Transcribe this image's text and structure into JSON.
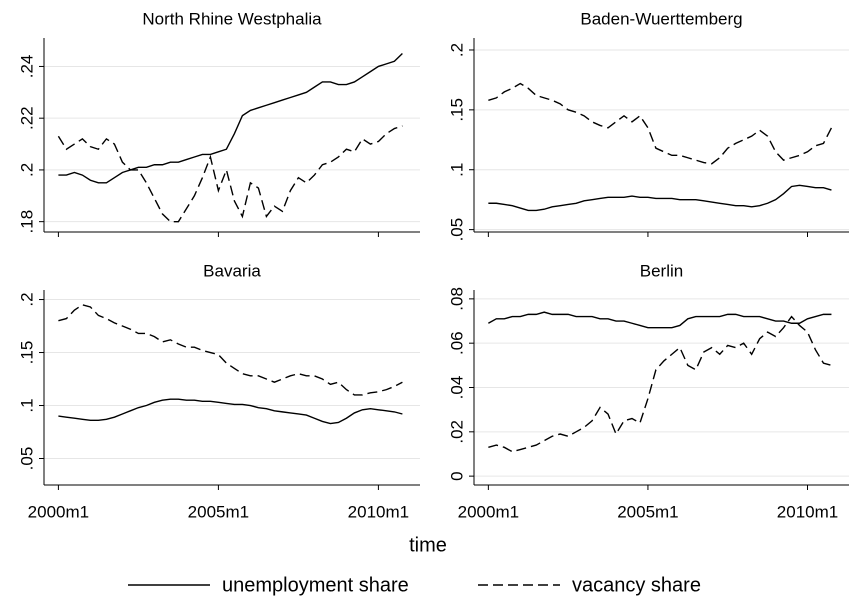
{
  "chart_data": [
    {
      "type": "line",
      "title": "North Rhine Westphalia",
      "x": [
        2000,
        2000.25,
        2000.5,
        2000.75,
        2001,
        2001.25,
        2001.5,
        2001.75,
        2002,
        2002.25,
        2002.5,
        2002.75,
        2003,
        2003.25,
        2003.5,
        2003.75,
        2004,
        2004.25,
        2004.5,
        2004.75,
        2005,
        2005.25,
        2005.5,
        2005.75,
        2006,
        2006.25,
        2006.5,
        2006.75,
        2007,
        2007.25,
        2007.5,
        2007.75,
        2008,
        2008.25,
        2008.5,
        2008.75,
        2009,
        2009.25,
        2009.5,
        2009.75,
        2010,
        2010.25,
        2010.5,
        2010.75
      ],
      "xlim": [
        1999.55,
        2011.3
      ],
      "xticks": [
        {
          "value": 2000,
          "label": "2000m1"
        },
        {
          "value": 2005,
          "label": "2005m1"
        },
        {
          "value": 2010,
          "label": "2010m1"
        }
      ],
      "ylim": [
        0.176,
        0.251
      ],
      "yticks": [
        {
          "value": 0.18,
          "label": ".18"
        },
        {
          "value": 0.2,
          "label": ".2"
        },
        {
          "value": 0.22,
          "label": ".22"
        },
        {
          "value": 0.24,
          "label": ".24"
        }
      ],
      "series": [
        {
          "dash": "solid",
          "values": [
            0.198,
            0.198,
            0.199,
            0.198,
            0.196,
            0.195,
            0.195,
            0.197,
            0.199,
            0.2,
            0.201,
            0.201,
            0.202,
            0.202,
            0.203,
            0.203,
            0.204,
            0.205,
            0.206,
            0.206,
            0.207,
            0.208,
            0.214,
            0.221,
            0.223,
            0.224,
            0.225,
            0.226,
            0.227,
            0.228,
            0.229,
            0.23,
            0.232,
            0.234,
            0.234,
            0.233,
            0.233,
            0.234,
            0.236,
            0.238,
            0.24,
            0.241,
            0.242,
            0.245
          ]
        },
        {
          "dash": "dashed",
          "values": [
            0.213,
            0.208,
            0.21,
            0.212,
            0.209,
            0.208,
            0.212,
            0.21,
            0.203,
            0.2,
            0.2,
            0.195,
            0.189,
            0.183,
            0.18,
            0.18,
            0.185,
            0.19,
            0.197,
            0.205,
            0.192,
            0.2,
            0.188,
            0.182,
            0.195,
            0.193,
            0.182,
            0.186,
            0.184,
            0.192,
            0.197,
            0.195,
            0.198,
            0.202,
            0.203,
            0.205,
            0.208,
            0.207,
            0.212,
            0.21,
            0.211,
            0.214,
            0.216,
            0.217
          ]
        }
      ]
    },
    {
      "type": "line",
      "title": "Baden-Wuerttemberg",
      "x": [
        2000,
        2000.25,
        2000.5,
        2000.75,
        2001,
        2001.25,
        2001.5,
        2001.75,
        2002,
        2002.25,
        2002.5,
        2002.75,
        2003,
        2003.25,
        2003.5,
        2003.75,
        2004,
        2004.25,
        2004.5,
        2004.75,
        2005,
        2005.25,
        2005.5,
        2005.75,
        2006,
        2006.25,
        2006.5,
        2006.75,
        2007,
        2007.25,
        2007.5,
        2007.75,
        2008,
        2008.25,
        2008.5,
        2008.75,
        2009,
        2009.25,
        2009.5,
        2009.75,
        2010,
        2010.25,
        2010.5,
        2010.75
      ],
      "xlim": [
        1999.55,
        2011.3
      ],
      "xticks": [
        {
          "value": 2000,
          "label": "2000m1"
        },
        {
          "value": 2005,
          "label": "2005m1"
        },
        {
          "value": 2010,
          "label": "2010m1"
        }
      ],
      "ylim": [
        0.048,
        0.21
      ],
      "yticks": [
        {
          "value": 0.05,
          "label": ".05"
        },
        {
          "value": 0.1,
          "label": ".1"
        },
        {
          "value": 0.15,
          "label": ".15"
        },
        {
          "value": 0.2,
          "label": ".2"
        }
      ],
      "series": [
        {
          "dash": "solid",
          "values": [
            0.072,
            0.072,
            0.071,
            0.07,
            0.068,
            0.066,
            0.066,
            0.067,
            0.069,
            0.07,
            0.071,
            0.072,
            0.074,
            0.075,
            0.076,
            0.077,
            0.077,
            0.077,
            0.078,
            0.077,
            0.077,
            0.076,
            0.076,
            0.076,
            0.075,
            0.075,
            0.075,
            0.074,
            0.073,
            0.072,
            0.071,
            0.07,
            0.07,
            0.069,
            0.07,
            0.072,
            0.075,
            0.08,
            0.086,
            0.087,
            0.086,
            0.085,
            0.085,
            0.083
          ]
        },
        {
          "dash": "dashed",
          "values": [
            0.158,
            0.16,
            0.165,
            0.168,
            0.172,
            0.168,
            0.162,
            0.16,
            0.158,
            0.155,
            0.15,
            0.148,
            0.145,
            0.14,
            0.137,
            0.135,
            0.14,
            0.145,
            0.14,
            0.145,
            0.135,
            0.118,
            0.115,
            0.112,
            0.112,
            0.11,
            0.108,
            0.106,
            0.105,
            0.11,
            0.118,
            0.122,
            0.125,
            0.128,
            0.133,
            0.128,
            0.115,
            0.108,
            0.11,
            0.112,
            0.115,
            0.12,
            0.122,
            0.135
          ]
        }
      ]
    },
    {
      "type": "line",
      "title": "Bavaria",
      "x": [
        2000,
        2000.25,
        2000.5,
        2000.75,
        2001,
        2001.25,
        2001.5,
        2001.75,
        2002,
        2002.25,
        2002.5,
        2002.75,
        2003,
        2003.25,
        2003.5,
        2003.75,
        2004,
        2004.25,
        2004.5,
        2004.75,
        2005,
        2005.25,
        2005.5,
        2005.75,
        2006,
        2006.25,
        2006.5,
        2006.75,
        2007,
        2007.25,
        2007.5,
        2007.75,
        2008,
        2008.25,
        2008.5,
        2008.75,
        2009,
        2009.25,
        2009.5,
        2009.75,
        2010,
        2010.25,
        2010.5,
        2010.75
      ],
      "xlim": [
        1999.55,
        2011.3
      ],
      "xticks": [
        {
          "value": 2000,
          "label": "2000m1"
        },
        {
          "value": 2005,
          "label": "2005m1"
        },
        {
          "value": 2010,
          "label": "2010m1"
        }
      ],
      "ylim": [
        0.025,
        0.209
      ],
      "yticks": [
        {
          "value": 0.05,
          "label": ".05"
        },
        {
          "value": 0.1,
          "label": ".1"
        },
        {
          "value": 0.15,
          "label": ".15"
        },
        {
          "value": 0.2,
          "label": ".2"
        }
      ],
      "series": [
        {
          "dash": "solid",
          "values": [
            0.09,
            0.089,
            0.088,
            0.087,
            0.086,
            0.086,
            0.087,
            0.089,
            0.092,
            0.095,
            0.098,
            0.1,
            0.103,
            0.105,
            0.106,
            0.106,
            0.105,
            0.105,
            0.104,
            0.104,
            0.103,
            0.102,
            0.101,
            0.101,
            0.1,
            0.098,
            0.097,
            0.095,
            0.094,
            0.093,
            0.092,
            0.091,
            0.088,
            0.085,
            0.083,
            0.084,
            0.088,
            0.093,
            0.096,
            0.097,
            0.096,
            0.095,
            0.094,
            0.092
          ]
        },
        {
          "dash": "dashed",
          "values": [
            0.18,
            0.182,
            0.19,
            0.195,
            0.193,
            0.185,
            0.182,
            0.178,
            0.175,
            0.172,
            0.168,
            0.168,
            0.165,
            0.16,
            0.162,
            0.158,
            0.155,
            0.155,
            0.152,
            0.15,
            0.148,
            0.14,
            0.135,
            0.13,
            0.128,
            0.128,
            0.125,
            0.122,
            0.125,
            0.128,
            0.13,
            0.128,
            0.128,
            0.125,
            0.12,
            0.122,
            0.115,
            0.11,
            0.11,
            0.112,
            0.113,
            0.115,
            0.118,
            0.122
          ]
        }
      ]
    },
    {
      "type": "line",
      "title": "Berlin",
      "x": [
        2000,
        2000.25,
        2000.5,
        2000.75,
        2001,
        2001.25,
        2001.5,
        2001.75,
        2002,
        2002.25,
        2002.5,
        2002.75,
        2003,
        2003.25,
        2003.5,
        2003.75,
        2004,
        2004.25,
        2004.5,
        2004.75,
        2005,
        2005.25,
        2005.5,
        2005.75,
        2006,
        2006.25,
        2006.5,
        2006.75,
        2007,
        2007.25,
        2007.5,
        2007.75,
        2008,
        2008.25,
        2008.5,
        2008.75,
        2009,
        2009.25,
        2009.5,
        2009.75,
        2010,
        2010.25,
        2010.5,
        2010.75
      ],
      "xlim": [
        1999.55,
        2011.3
      ],
      "xticks": [
        {
          "value": 2000,
          "label": "2000m1"
        },
        {
          "value": 2005,
          "label": "2005m1"
        },
        {
          "value": 2010,
          "label": "2010m1"
        }
      ],
      "ylim": [
        -0.004,
        0.084
      ],
      "yticks": [
        0,
        {
          "value": 0.02,
          "label": ".02"
        },
        {
          "value": 0.04,
          "label": ".04"
        },
        {
          "value": 0.06,
          "label": ".06"
        },
        {
          "value": 0.08,
          "label": ".08"
        }
      ],
      "series": [
        {
          "dash": "solid",
          "values": [
            0.069,
            0.071,
            0.071,
            0.072,
            0.072,
            0.073,
            0.073,
            0.074,
            0.073,
            0.073,
            0.073,
            0.072,
            0.072,
            0.072,
            0.071,
            0.071,
            0.07,
            0.07,
            0.069,
            0.068,
            0.067,
            0.067,
            0.067,
            0.067,
            0.068,
            0.071,
            0.072,
            0.072,
            0.072,
            0.072,
            0.073,
            0.073,
            0.072,
            0.072,
            0.072,
            0.071,
            0.07,
            0.07,
            0.069,
            0.069,
            0.071,
            0.072,
            0.073,
            0.073
          ]
        },
        {
          "dash": "dashed",
          "values": [
            0.013,
            0.014,
            0.013,
            0.011,
            0.012,
            0.013,
            0.014,
            0.016,
            0.018,
            0.019,
            0.018,
            0.02,
            0.022,
            0.025,
            0.031,
            0.028,
            0.019,
            0.025,
            0.026,
            0.024,
            0.035,
            0.048,
            0.052,
            0.055,
            0.058,
            0.05,
            0.048,
            0.056,
            0.058,
            0.055,
            0.059,
            0.058,
            0.06,
            0.055,
            0.062,
            0.065,
            0.063,
            0.067,
            0.072,
            0.068,
            0.065,
            0.057,
            0.051,
            0.05
          ]
        }
      ]
    }
  ],
  "xlabel": "time",
  "legend": [
    {
      "name": "unemployment share",
      "dash": "solid"
    },
    {
      "name": "vacancy share",
      "dash": "dashed"
    }
  ]
}
